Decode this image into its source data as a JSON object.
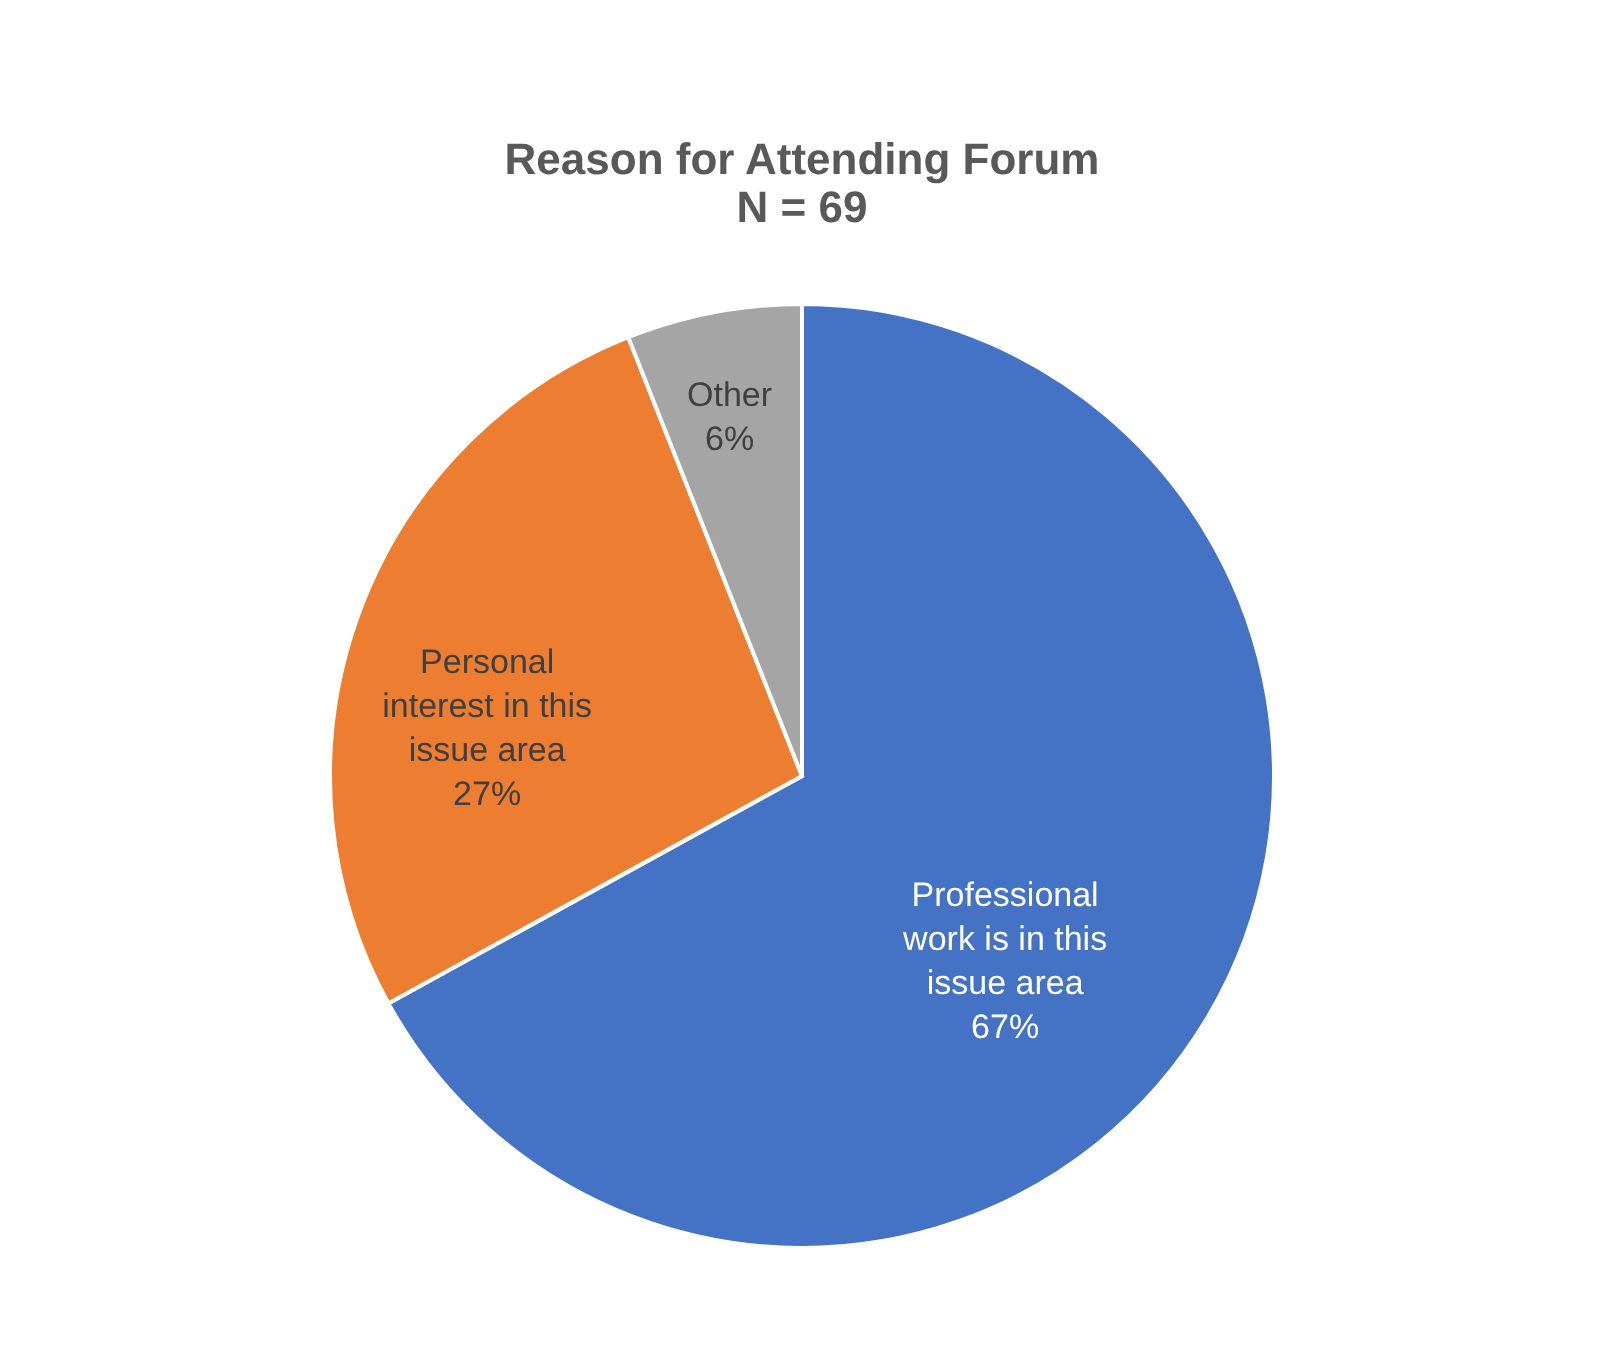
{
  "chart_data": {
    "type": "pie",
    "title": "Reason for Attending Forum",
    "subtitle": "N = 69",
    "categories": [
      "Professional work is in this issue area",
      "Personal interest in this issue area",
      "Other"
    ],
    "values": [
      67,
      27,
      6
    ],
    "colors": [
      "#4472c4",
      "#ed7d31",
      "#a5a5a5"
    ],
    "value_labels": [
      "67%",
      "27%",
      "6%"
    ]
  }
}
